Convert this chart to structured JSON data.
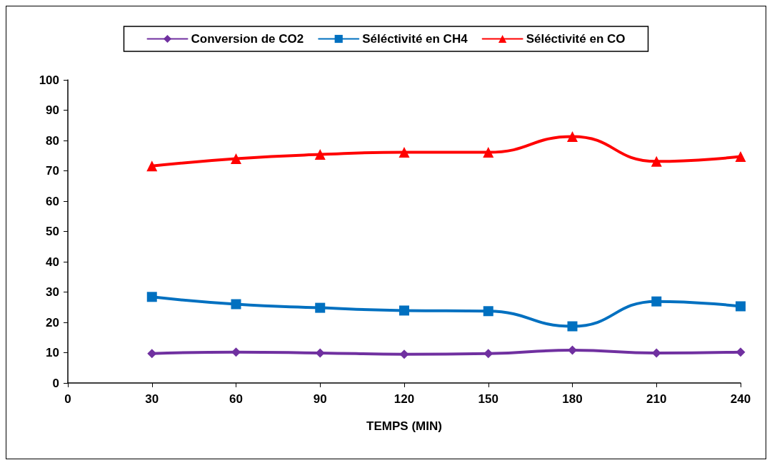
{
  "chart_data": {
    "type": "line",
    "xlabel": "TEMPS (MIN)",
    "x": [
      30,
      60,
      90,
      120,
      150,
      180,
      210,
      240
    ],
    "xlim": [
      0,
      240
    ],
    "xticks": [
      0,
      30,
      60,
      90,
      120,
      150,
      180,
      210,
      240
    ],
    "ylim": [
      0,
      100
    ],
    "yticks": [
      0,
      10,
      20,
      30,
      40,
      50,
      60,
      70,
      80,
      90,
      100
    ],
    "grid": false,
    "legend": "top",
    "line_style": "solid",
    "series": [
      {
        "name": "Conversion de CO2",
        "color": "#7030a0",
        "marker": "diamond",
        "values": [
          9.7,
          10.2,
          9.9,
          9.5,
          9.7,
          10.8,
          9.9,
          10.2
        ]
      },
      {
        "name": "Séléctivité en CH4",
        "color": "#0070c0",
        "marker": "square",
        "values": [
          28.4,
          26.0,
          24.8,
          23.9,
          23.7,
          18.7,
          26.9,
          25.3
        ]
      },
      {
        "name": "Séléctivité en CO",
        "color": "#ff0000",
        "marker": "triangle",
        "values": [
          71.6,
          74.0,
          75.4,
          76.1,
          76.1,
          81.3,
          73.1,
          74.7
        ]
      }
    ]
  }
}
